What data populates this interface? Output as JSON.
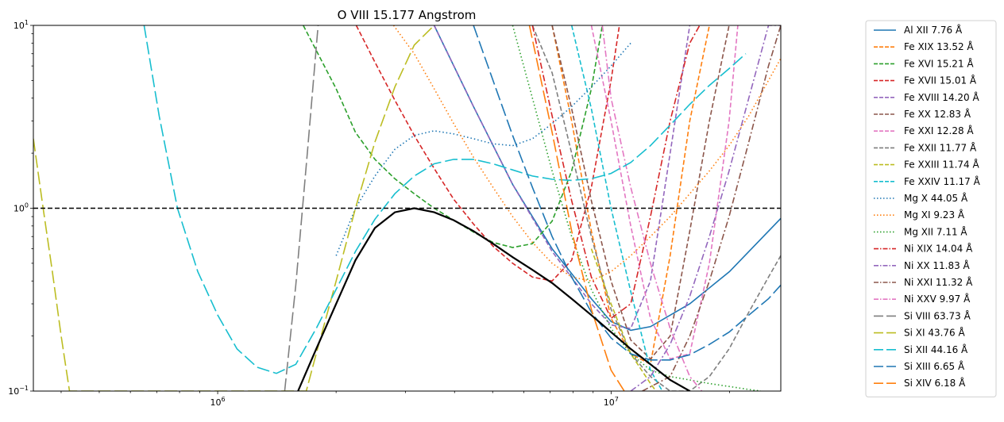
{
  "chart_data": {
    "type": "line",
    "title": "O VIII 15.177 Angstrom",
    "xlabel": "",
    "ylabel": "",
    "xscale": "log",
    "yscale": "log",
    "xlim": [
      340000,
      27000000
    ],
    "ylim": [
      0.1,
      10
    ],
    "x_ticks": [
      {
        "value": 1000000,
        "base": "10",
        "exp": "6"
      },
      {
        "value": 10000000,
        "base": "10",
        "exp": "7"
      }
    ],
    "y_ticks": [
      {
        "value": 0.1,
        "base": "10",
        "exp": "−1"
      },
      {
        "value": 1,
        "base": "10",
        "exp": "0"
      },
      {
        "value": 10,
        "base": "10",
        "exp": "1"
      }
    ],
    "legend_position": "outside-right",
    "reference_line": {
      "y": 1.0,
      "color": "#000000",
      "style": "dashed"
    },
    "envelope": {
      "color": "#000000",
      "x": [
        1600000,
        1780000,
        2000000,
        2240000,
        2510000,
        2820000,
        3160000,
        3550000,
        3980000,
        4470000,
        5010000,
        5620000,
        6310000,
        7080000,
        7940000,
        8910000,
        10000000,
        11220000,
        12590000,
        14130000,
        15850000
      ],
      "y": [
        0.1,
        0.17,
        0.3,
        0.52,
        0.78,
        0.95,
        1.0,
        0.95,
        0.86,
        0.75,
        0.64,
        0.54,
        0.46,
        0.39,
        0.32,
        0.26,
        0.21,
        0.17,
        0.14,
        0.115,
        0.1
      ]
    },
    "series": [
      {
        "name": "Al XII 7.76 Å",
        "color": "#1f77b4",
        "style": "solid",
        "x": [
          3550000,
          4470000,
          5620000,
          7080000,
          8910000,
          10000000,
          11220000,
          12590000,
          15850000,
          20000000,
          27000000
        ],
        "y": [
          10,
          3.6,
          1.35,
          0.6,
          0.32,
          0.24,
          0.215,
          0.225,
          0.3,
          0.45,
          0.88
        ]
      },
      {
        "name": "Fe XIX 13.52 Å",
        "color": "#ff7f0e",
        "style": "dashed",
        "x": [
          7080000,
          7940000,
          8910000,
          10000000,
          11220000,
          12590000,
          14130000,
          15850000,
          17780000
        ],
        "y": [
          10,
          3.0,
          0.75,
          0.25,
          0.16,
          0.14,
          0.55,
          3.0,
          10
        ]
      },
      {
        "name": "Fe XVI 15.21 Å",
        "color": "#2ca02c",
        "style": "dashed",
        "x": [
          1650000,
          2000000,
          2240000,
          2510000,
          2820000,
          3160000,
          3550000,
          3980000,
          4470000,
          5010000,
          5620000,
          6310000,
          7080000,
          7940000,
          8910000,
          9500000
        ],
        "y": [
          10,
          4.5,
          2.6,
          1.85,
          1.45,
          1.2,
          1.0,
          0.86,
          0.74,
          0.65,
          0.61,
          0.64,
          0.85,
          1.6,
          4.5,
          10
        ]
      },
      {
        "name": "Fe XVII 15.01 Å",
        "color": "#d62728",
        "style": "dashed",
        "x": [
          2250000,
          2510000,
          2820000,
          3160000,
          3550000,
          3980000,
          4470000,
          5010000,
          5620000,
          6310000,
          7080000,
          7940000,
          8910000,
          10000000,
          10500000
        ],
        "y": [
          10,
          6.3,
          3.9,
          2.5,
          1.65,
          1.12,
          0.82,
          0.62,
          0.5,
          0.42,
          0.4,
          0.52,
          1.3,
          5.0,
          10
        ]
      },
      {
        "name": "Fe XVIII 14.20 Å",
        "color": "#9467bd",
        "style": "dashed",
        "x": [
          3550000,
          4470000,
          5620000,
          7080000,
          8910000,
          10000000,
          11220000,
          12590000,
          14130000,
          15850000
        ],
        "y": [
          10,
          3.6,
          1.35,
          0.58,
          0.3,
          0.23,
          0.22,
          0.4,
          2.0,
          10
        ]
      },
      {
        "name": "Fe XX 12.83 Å",
        "color": "#8c564b",
        "style": "dashed",
        "x": [
          7080000,
          7940000,
          8910000,
          10000000,
          11220000,
          12590000,
          14130000,
          15850000,
          17780000,
          19950000
        ],
        "y": [
          10,
          3.5,
          1.1,
          0.4,
          0.19,
          0.15,
          0.2,
          0.75,
          3.0,
          10
        ]
      },
      {
        "name": "Fe XXI 12.28 Å",
        "color": "#e377c2",
        "style": "dashed",
        "x": [
          8910000,
          10000000,
          11220000,
          12590000,
          14130000,
          15850000,
          17780000,
          19950000,
          21000000
        ],
        "y": [
          10,
          3.0,
          0.8,
          0.25,
          0.15,
          0.16,
          0.5,
          3.0,
          10
        ]
      },
      {
        "name": "Fe XXII 11.77 Å",
        "color": "#7f7f7f",
        "style": "dashed",
        "x": [
          6310000,
          7080000,
          7940000,
          8910000,
          10000000,
          11220000,
          12590000,
          14130000,
          15850000,
          17780000,
          19950000,
          22390000,
          25120000,
          27000000
        ],
        "y": [
          10,
          5.5,
          2.0,
          0.7,
          0.28,
          0.16,
          0.12,
          0.1,
          0.1,
          0.12,
          0.17,
          0.27,
          0.42,
          0.55
        ]
      },
      {
        "name": "Fe XXIII 11.74 Å",
        "color": "#bcbd22",
        "style": "dashed",
        "x": [
          8910000,
          10000000,
          11220000,
          12590000,
          13000000
        ],
        "y": [
          0.6,
          0.3,
          0.16,
          0.11,
          0.1
        ]
      },
      {
        "name": "Fe XXIV 11.17 Å",
        "color": "#17becf",
        "style": "dashed",
        "x": [
          7940000,
          8910000,
          10000000,
          11220000,
          12590000,
          13500000
        ],
        "y": [
          10,
          3.5,
          1.0,
          0.35,
          0.13,
          0.1
        ]
      },
      {
        "name": "Mg X 44.05 Å",
        "color": "#1f77b4",
        "style": "dotted",
        "x": [
          2000000,
          2240000,
          2510000,
          2820000,
          3160000,
          3550000,
          3980000,
          4470000,
          5010000,
          5620000,
          6310000,
          7080000,
          7940000,
          8910000,
          10000000,
          11220000
        ],
        "y": [
          0.55,
          1.0,
          1.5,
          2.1,
          2.5,
          2.65,
          2.55,
          2.4,
          2.25,
          2.2,
          2.4,
          2.9,
          3.6,
          4.6,
          6.0,
          8.0
        ]
      },
      {
        "name": "Mg XI 9.23 Å",
        "color": "#ff7f0e",
        "style": "dotted",
        "x": [
          2800000,
          3160000,
          3550000,
          3980000,
          4470000,
          5010000,
          5620000,
          6310000,
          7080000,
          7940000,
          8910000,
          10000000,
          11220000,
          12590000,
          14130000,
          15850000,
          17780000,
          19950000,
          22390000,
          25120000,
          27000000
        ],
        "y": [
          10,
          7.0,
          4.5,
          2.9,
          1.9,
          1.3,
          0.9,
          0.65,
          0.5,
          0.42,
          0.4,
          0.45,
          0.55,
          0.7,
          0.9,
          1.2,
          1.6,
          2.2,
          3.2,
          5.0,
          6.6
        ]
      },
      {
        "name": "Mg XII 7.11 Å",
        "color": "#2ca02c",
        "style": "dotted",
        "x": [
          5620000,
          6310000,
          7080000,
          7940000,
          8910000,
          10000000,
          11220000,
          12590000,
          14130000,
          15850000,
          17780000,
          19950000,
          22390000,
          24000000
        ],
        "y": [
          10,
          4.0,
          1.6,
          0.7,
          0.36,
          0.22,
          0.16,
          0.13,
          0.12,
          0.115,
          0.11,
          0.106,
          0.102,
          0.1
        ]
      },
      {
        "name": "Ni XIX 14.04 Å",
        "color": "#d62728",
        "style": "dashdot",
        "x": [
          6310000,
          7080000,
          7940000,
          8910000,
          10000000,
          11220000,
          12590000,
          14130000,
          15850000,
          16800000
        ],
        "y": [
          10,
          3.2,
          1.1,
          0.42,
          0.25,
          0.3,
          0.9,
          3.0,
          8.0,
          10
        ]
      },
      {
        "name": "Ni XX 11.83 Å",
        "color": "#9467bd",
        "style": "dashdot",
        "x": [
          11220000,
          12590000,
          14130000,
          15850000,
          17780000,
          19950000,
          22390000,
          25120000,
          27000000
        ],
        "y": [
          0.1,
          0.12,
          0.18,
          0.33,
          0.7,
          1.6,
          4.0,
          10,
          10
        ]
      },
      {
        "name": "Ni XXI 11.32 Å",
        "color": "#8c564b",
        "style": "dashdot",
        "x": [
          12000000,
          14130000,
          15850000,
          17780000,
          19950000,
          22390000,
          25120000,
          27000000
        ],
        "y": [
          0.1,
          0.12,
          0.2,
          0.4,
          0.9,
          2.3,
          6.0,
          10
        ]
      },
      {
        "name": "Ni XXV 9.97 Å",
        "color": "#e377c2",
        "style": "dashdot",
        "x": [
          9500000,
          10000000,
          11220000,
          12590000,
          14130000,
          15850000,
          17000000
        ],
        "y": [
          10,
          4.0,
          1.3,
          0.5,
          0.22,
          0.12,
          0.1
        ]
      },
      {
        "name": "Si VIII 63.73 Å",
        "color": "#7f7f7f",
        "style": "longdash",
        "x": [
          1480000,
          1580000,
          1690000,
          1800000
        ],
        "y": [
          0.1,
          0.38,
          2.0,
          10
        ]
      },
      {
        "name": "Si XI 43.76 Å",
        "color": "#bcbd22",
        "style": "longdash",
        "x": [
          340000,
          360000,
          380000,
          400000,
          420000,
          1680000,
          1780000,
          2000000,
          2240000,
          2510000,
          2820000,
          3160000,
          3550000
        ],
        "y": [
          2.4,
          1.0,
          0.45,
          0.2,
          0.1,
          0.1,
          0.16,
          0.4,
          1.0,
          2.3,
          4.6,
          7.8,
          10
        ]
      },
      {
        "name": "Si XII 44.16 Å",
        "color": "#17becf",
        "style": "longdash",
        "x": [
          650000,
          710000,
          790000,
          890000,
          1000000,
          1120000,
          1260000,
          1410000,
          1580000,
          1780000,
          2000000,
          2240000,
          2510000,
          2820000,
          3160000,
          3550000,
          3980000,
          4470000,
          5010000,
          5620000,
          6310000,
          7080000,
          7940000,
          8910000,
          10000000,
          11220000,
          12590000,
          14130000,
          15850000,
          17780000,
          19950000,
          22000000
        ],
        "y": [
          10,
          3.2,
          1.0,
          0.45,
          0.26,
          0.17,
          0.135,
          0.125,
          0.14,
          0.22,
          0.36,
          0.58,
          0.87,
          1.2,
          1.5,
          1.75,
          1.85,
          1.85,
          1.75,
          1.62,
          1.5,
          1.44,
          1.42,
          1.45,
          1.55,
          1.78,
          2.2,
          2.85,
          3.7,
          4.7,
          5.8,
          7.0
        ]
      },
      {
        "name": "Si XIII 6.65 Å",
        "color": "#1f77b4",
        "style": "longdash",
        "x": [
          4470000,
          5010000,
          5620000,
          6310000,
          7080000,
          7940000,
          8910000,
          10000000,
          11220000,
          12590000,
          14130000,
          15850000,
          17780000,
          19950000,
          22390000,
          25120000,
          27000000
        ],
        "y": [
          10,
          5.0,
          2.5,
          1.3,
          0.7,
          0.42,
          0.27,
          0.195,
          0.16,
          0.148,
          0.148,
          0.158,
          0.18,
          0.21,
          0.26,
          0.32,
          0.38
        ]
      },
      {
        "name": "Si XIV 6.18 Å",
        "color": "#ff7f0e",
        "style": "longdash",
        "x": [
          6200000,
          7080000,
          7940000,
          8910000,
          10000000,
          10800000
        ],
        "y": [
          10,
          2.6,
          0.75,
          0.28,
          0.13,
          0.1
        ]
      }
    ]
  }
}
